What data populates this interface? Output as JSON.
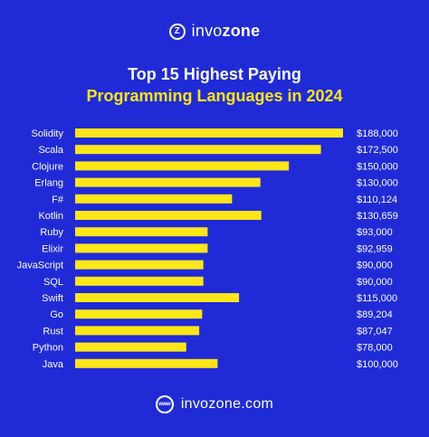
{
  "brand": {
    "logo_glyph": "Z",
    "name_prefix": "invo",
    "name_suffix": "zone",
    "logo_icon": "invozone-logo-icon"
  },
  "footer": {
    "globe_glyph": "www",
    "website": "invozone.com",
    "icon": "globe-www-icon"
  },
  "colors": {
    "background": "#1f2bd6",
    "bar": "#ffe619",
    "title_highlight": "#ffe619",
    "text": "#ffffff"
  },
  "chart_data": {
    "type": "bar",
    "orientation": "horizontal",
    "title": "Top 15 Highest Paying",
    "subtitle": "Programming Languages in 2024",
    "xlabel": "",
    "ylabel": "",
    "xlim": [
      0,
      188000
    ],
    "grid": false,
    "legend": "none",
    "categories": [
      "Solidity",
      "Scala",
      "Clojure",
      "Erlang",
      "F#",
      "Kotlin",
      "Ruby",
      "Elixir",
      "JavaScript",
      "SQL",
      "Swift",
      "Go",
      "Rust",
      "Python",
      "Java"
    ],
    "values": [
      188000,
      172500,
      150000,
      130000,
      110124,
      130659,
      93000,
      92959,
      90000,
      90000,
      115000,
      89204,
      87047,
      78000,
      100000
    ],
    "value_labels": [
      "$188,000",
      "$172,500",
      "$150,000",
      "$130,000",
      "$110,124",
      "$130,659",
      "$93,000",
      "$92,959",
      "$90,000",
      "$90,000",
      "$115,000",
      "$89,204",
      "$87,047",
      "$78,000",
      "$100,000"
    ]
  }
}
